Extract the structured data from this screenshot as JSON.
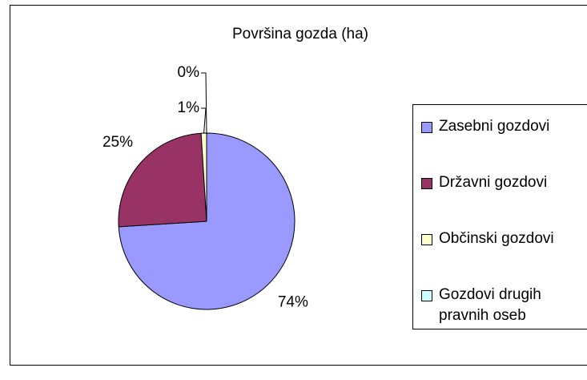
{
  "chart_data": {
    "type": "pie",
    "title": "Površina gozda (ha)",
    "categories": [
      "Zasebni gozdovi",
      "Državni gozdovi",
      "Občinski gozdovi",
      "Gozdovi drugih pravnih oseb"
    ],
    "values": [
      74,
      25,
      1,
      0
    ],
    "value_labels": [
      "74%",
      "25%",
      "1%",
      "0%"
    ],
    "colors": [
      "#9999ff",
      "#993366",
      "#ffffcc",
      "#ccffff"
    ],
    "legend": "right"
  }
}
